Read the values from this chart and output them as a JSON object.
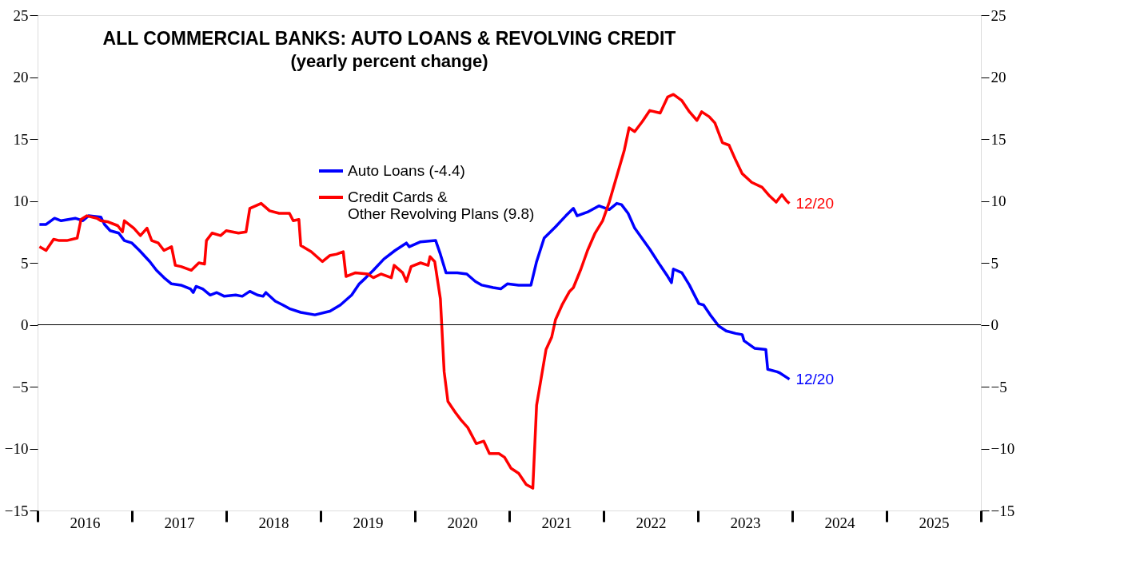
{
  "chart_data": {
    "type": "line",
    "title": "ALL COMMERCIAL BANKS: AUTO LOANS & REVOLVING CREDIT",
    "subtitle": "(yearly percent change)",
    "xlim": [
      2016,
      2026
    ],
    "xticks": [
      {
        "value": 2016,
        "label": null
      },
      {
        "value": 2016.5,
        "label": "2016"
      },
      {
        "value": 2017,
        "label": null
      },
      {
        "value": 2017.5,
        "label": "2017"
      },
      {
        "value": 2018,
        "label": null
      },
      {
        "value": 2018.5,
        "label": "2018"
      },
      {
        "value": 2019,
        "label": null
      },
      {
        "value": 2019.5,
        "label": "2019"
      },
      {
        "value": 2020,
        "label": null
      },
      {
        "value": 2020.5,
        "label": "2020"
      },
      {
        "value": 2021,
        "label": null
      },
      {
        "value": 2021.5,
        "label": "2021"
      },
      {
        "value": 2022,
        "label": null
      },
      {
        "value": 2022.5,
        "label": "2022"
      },
      {
        "value": 2023,
        "label": null
      },
      {
        "value": 2023.5,
        "label": "2023"
      },
      {
        "value": 2024,
        "label": null
      },
      {
        "value": 2024.5,
        "label": "2024"
      },
      {
        "value": 2025,
        "label": null
      },
      {
        "value": 2025.5,
        "label": "2025"
      },
      {
        "value": 2026,
        "label": null
      }
    ],
    "ylim": [
      -15,
      25
    ],
    "yticks": [
      -15,
      -10,
      -5,
      0,
      5,
      10,
      15,
      20,
      25
    ],
    "y2lim": [
      -15,
      25
    ],
    "y2ticks": [
      -15,
      -10,
      -5,
      0,
      5,
      10,
      15,
      20,
      25
    ],
    "grid": false,
    "legend": "top left",
    "line_style": "solid",
    "ref_lines": [
      {
        "axis": "y",
        "value": 0,
        "color": "#000000"
      }
    ],
    "annotations": [
      {
        "text": "12/20",
        "x": 2023.97,
        "y": -4.4
      },
      {
        "text": "12/20",
        "x": 2023.97,
        "y": 9.8
      }
    ],
    "series": [
      {
        "name": "Auto Loans (-4.4)",
        "color": "#0000ff",
        "x": [
          2016.02,
          2016.09,
          2016.18,
          2016.25,
          2016.4,
          2016.48,
          2016.54,
          2016.67,
          2016.71,
          2016.77,
          2016.86,
          2016.92,
          2017.0,
          2017.08,
          2017.19,
          2017.26,
          2017.34,
          2017.42,
          2017.52,
          2017.62,
          2017.65,
          2017.68,
          2017.75,
          2017.83,
          2017.9,
          2017.98,
          2018.1,
          2018.17,
          2018.25,
          2018.33,
          2018.39,
          2018.42,
          2018.52,
          2018.6,
          2018.67,
          2018.79,
          2018.94,
          2019.1,
          2019.21,
          2019.33,
          2019.41,
          2019.48,
          2019.56,
          2019.67,
          2019.79,
          2019.91,
          2019.94,
          2020.06,
          2020.22,
          2020.27,
          2020.33,
          2020.45,
          2020.55,
          2020.64,
          2020.71,
          2020.83,
          2020.91,
          2020.98,
          2021.1,
          2021.23,
          2021.29,
          2021.37,
          2021.49,
          2021.6,
          2021.68,
          2021.72,
          2021.83,
          2021.95,
          2022.06,
          2022.14,
          2022.19,
          2022.26,
          2022.33,
          2022.49,
          2022.6,
          2022.68,
          2022.72,
          2022.74,
          2022.83,
          2022.91,
          2022.97,
          2023.01,
          2023.06,
          2023.14,
          2023.22,
          2023.3,
          2023.4,
          2023.47,
          2023.49,
          2023.6,
          2023.72,
          2023.74,
          2023.84,
          2023.87,
          2023.95,
          2023.97
        ],
        "values": [
          8.1,
          8.1,
          8.6,
          8.4,
          8.6,
          8.4,
          8.8,
          8.7,
          8.1,
          7.6,
          7.4,
          6.8,
          6.6,
          6.0,
          5.1,
          4.4,
          3.8,
          3.3,
          3.2,
          2.9,
          2.6,
          3.1,
          2.9,
          2.4,
          2.6,
          2.3,
          2.4,
          2.3,
          2.7,
          2.4,
          2.3,
          2.6,
          1.9,
          1.6,
          1.3,
          1.0,
          0.8,
          1.1,
          1.6,
          2.4,
          3.3,
          3.8,
          4.4,
          5.3,
          6.0,
          6.6,
          6.3,
          6.7,
          6.8,
          5.7,
          4.2,
          4.2,
          4.1,
          3.5,
          3.2,
          3.0,
          2.9,
          3.3,
          3.2,
          3.2,
          5.1,
          7.0,
          7.9,
          8.8,
          9.4,
          8.8,
          9.1,
          9.6,
          9.3,
          9.8,
          9.7,
          9.0,
          7.8,
          6.1,
          4.8,
          3.9,
          3.4,
          4.5,
          4.2,
          3.2,
          2.3,
          1.7,
          1.6,
          0.7,
          -0.1,
          -0.5,
          -0.7,
          -0.8,
          -1.3,
          -1.9,
          -2.0,
          -3.6,
          -3.8,
          -3.9,
          -4.3,
          -4.4
        ]
      },
      {
        "name": "Credit Cards &\nOther Revolving Plans (9.8)",
        "color": "#ff0000",
        "x": [
          2016.02,
          2016.09,
          2016.17,
          2016.23,
          2016.31,
          2016.42,
          2016.46,
          2016.52,
          2016.63,
          2016.67,
          2016.75,
          2016.85,
          2016.9,
          2016.92,
          2017.02,
          2017.09,
          2017.16,
          2017.21,
          2017.28,
          2017.34,
          2017.42,
          2017.46,
          2017.52,
          2017.63,
          2017.71,
          2017.77,
          2017.79,
          2017.85,
          2017.94,
          2018.0,
          2018.13,
          2018.21,
          2018.25,
          2018.37,
          2018.46,
          2018.56,
          2018.67,
          2018.71,
          2018.77,
          2018.79,
          2018.9,
          2019.02,
          2019.1,
          2019.17,
          2019.24,
          2019.27,
          2019.37,
          2019.5,
          2019.56,
          2019.64,
          2019.75,
          2019.78,
          2019.87,
          2019.91,
          2019.96,
          2020.06,
          2020.14,
          2020.16,
          2020.21,
          2020.27,
          2020.31,
          2020.35,
          2020.43,
          2020.49,
          2020.56,
          2020.65,
          2020.73,
          2020.79,
          2020.89,
          2020.95,
          2021.02,
          2021.1,
          2021.18,
          2021.25,
          2021.29,
          2021.39,
          2021.45,
          2021.49,
          2021.56,
          2021.64,
          2021.68,
          2021.76,
          2021.83,
          2021.91,
          2021.99,
          2022.06,
          2022.14,
          2022.22,
          2022.27,
          2022.33,
          2022.41,
          2022.49,
          2022.6,
          2022.68,
          2022.74,
          2022.83,
          2022.91,
          2022.99,
          2023.04,
          2023.12,
          2023.18,
          2023.26,
          2023.33,
          2023.4,
          2023.47,
          2023.57,
          2023.68,
          2023.76,
          2023.83,
          2023.89,
          2023.94,
          2023.97
        ],
        "values": [
          6.3,
          6.0,
          6.9,
          6.8,
          6.8,
          7.0,
          8.5,
          8.8,
          8.6,
          8.4,
          8.3,
          8.0,
          7.5,
          8.4,
          7.8,
          7.2,
          7.8,
          6.8,
          6.6,
          6.0,
          6.3,
          4.8,
          4.7,
          4.4,
          5.0,
          4.9,
          6.8,
          7.4,
          7.2,
          7.6,
          7.4,
          7.5,
          9.4,
          9.8,
          9.2,
          9.0,
          9.0,
          8.4,
          8.5,
          6.4,
          5.9,
          5.1,
          5.6,
          5.7,
          5.9,
          3.9,
          4.2,
          4.1,
          3.8,
          4.1,
          3.8,
          4.8,
          4.2,
          3.5,
          4.7,
          5.0,
          4.8,
          5.5,
          5.1,
          2.1,
          -3.8,
          -6.2,
          -7.1,
          -7.7,
          -8.3,
          -9.6,
          -9.4,
          -10.4,
          -10.4,
          -10.7,
          -11.6,
          -12.0,
          -12.9,
          -13.2,
          -6.5,
          -2.0,
          -1.0,
          0.4,
          1.6,
          2.7,
          3.0,
          4.5,
          6.0,
          7.4,
          8.4,
          9.9,
          12.0,
          14.1,
          15.9,
          15.6,
          16.4,
          17.3,
          17.1,
          18.4,
          18.6,
          18.1,
          17.2,
          16.5,
          17.2,
          16.8,
          16.3,
          14.7,
          14.5,
          13.3,
          12.2,
          11.5,
          11.1,
          10.4,
          9.9,
          10.5,
          10.0,
          9.8
        ]
      }
    ]
  }
}
